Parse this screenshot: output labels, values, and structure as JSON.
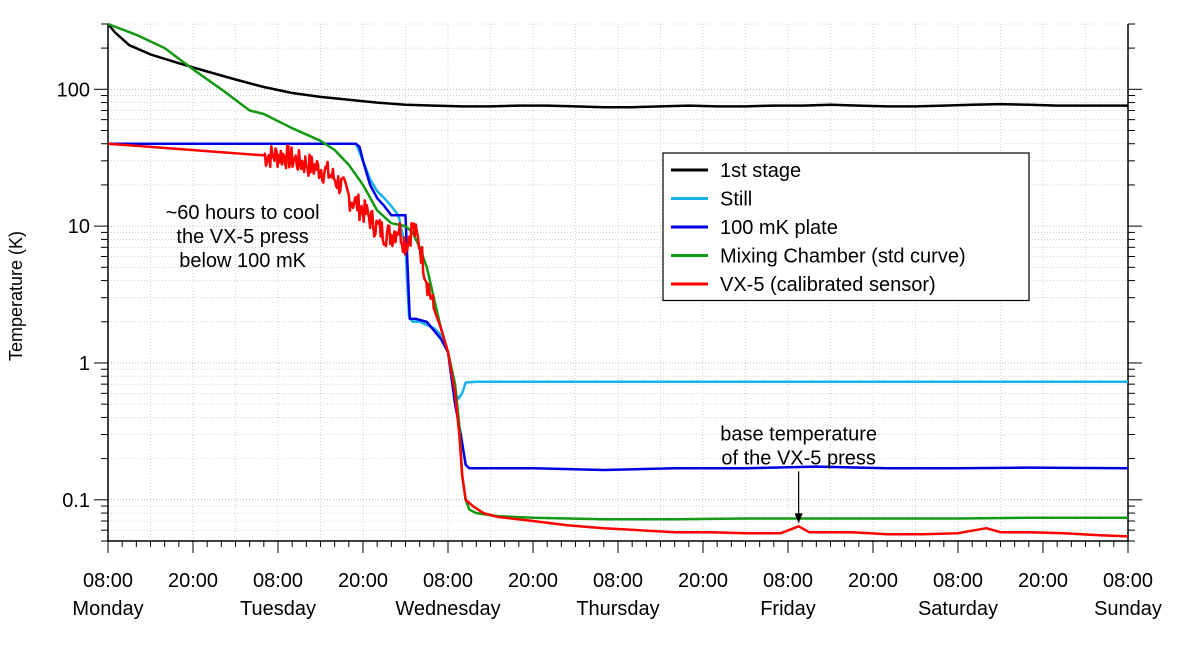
{
  "chart_data": {
    "type": "line",
    "title": "",
    "xlabel": "",
    "ylabel": "Temperature (K)",
    "yscale": "log",
    "ylim": [
      0.05,
      300
    ],
    "xlim_hours": [
      0,
      144
    ],
    "grid": true,
    "legend_position": "upper-right",
    "x_ticks": [
      {
        "hour": 0,
        "time": "08:00",
        "day": "Monday"
      },
      {
        "hour": 12,
        "time": "20:00",
        "day": ""
      },
      {
        "hour": 24,
        "time": "08:00",
        "day": "Tuesday"
      },
      {
        "hour": 36,
        "time": "20:00",
        "day": ""
      },
      {
        "hour": 48,
        "time": "08:00",
        "day": "Wednesday"
      },
      {
        "hour": 60,
        "time": "20:00",
        "day": ""
      },
      {
        "hour": 72,
        "time": "08:00",
        "day": "Thursday"
      },
      {
        "hour": 84,
        "time": "20:00",
        "day": ""
      },
      {
        "hour": 96,
        "time": "08:00",
        "day": "Friday"
      },
      {
        "hour": 108,
        "time": "20:00",
        "day": ""
      },
      {
        "hour": 120,
        "time": "08:00",
        "day": "Saturday"
      },
      {
        "hour": 132,
        "time": "20:00",
        "day": ""
      },
      {
        "hour": 144,
        "time": "08:00",
        "day": "Sunday"
      }
    ],
    "y_ticks": [
      {
        "value": 100,
        "label": "100"
      },
      {
        "value": 10,
        "label": "10"
      },
      {
        "value": 1,
        "label": "1"
      },
      {
        "value": 0.1,
        "label": "0.1"
      }
    ],
    "series": [
      {
        "name": "1st stage",
        "color": "#000000",
        "width": 2.5,
        "points": [
          [
            0,
            300
          ],
          [
            1,
            260
          ],
          [
            3,
            210
          ],
          [
            6,
            180
          ],
          [
            10,
            155
          ],
          [
            14,
            135
          ],
          [
            18,
            118
          ],
          [
            22,
            104
          ],
          [
            26,
            94
          ],
          [
            30,
            88
          ],
          [
            34,
            84
          ],
          [
            38,
            80
          ],
          [
            42,
            77
          ],
          [
            46,
            76
          ],
          [
            50,
            75
          ],
          [
            54,
            75
          ],
          [
            58,
            76
          ],
          [
            62,
            76
          ],
          [
            66,
            75
          ],
          [
            70,
            74
          ],
          [
            74,
            74
          ],
          [
            78,
            75
          ],
          [
            82,
            76
          ],
          [
            86,
            75
          ],
          [
            90,
            75
          ],
          [
            94,
            76
          ],
          [
            98,
            76
          ],
          [
            102,
            77
          ],
          [
            106,
            76
          ],
          [
            110,
            75
          ],
          [
            114,
            75
          ],
          [
            118,
            76
          ],
          [
            122,
            77
          ],
          [
            126,
            78
          ],
          [
            130,
            77
          ],
          [
            134,
            76
          ],
          [
            138,
            76
          ],
          [
            144,
            76
          ]
        ]
      },
      {
        "name": "Still",
        "color": "#1ab2ea",
        "width": 2.5,
        "points": [
          [
            0,
            40
          ],
          [
            30,
            40
          ],
          [
            35,
            40
          ],
          [
            36,
            30
          ],
          [
            37,
            22
          ],
          [
            38,
            18
          ],
          [
            39,
            16
          ],
          [
            40,
            14
          ],
          [
            41,
            12
          ],
          [
            42,
            7
          ],
          [
            42.5,
            2.2
          ],
          [
            43,
            2
          ],
          [
            44,
            2
          ],
          [
            46,
            1.8
          ],
          [
            47,
            1.6
          ],
          [
            48,
            1.2
          ],
          [
            49,
            0.6
          ],
          [
            49.5,
            0.55
          ],
          [
            50,
            0.6
          ],
          [
            50.5,
            0.72
          ],
          [
            52,
            0.73
          ],
          [
            60,
            0.73
          ],
          [
            80,
            0.73
          ],
          [
            100,
            0.73
          ],
          [
            120,
            0.73
          ],
          [
            144,
            0.73
          ]
        ]
      },
      {
        "name": "100 mK plate",
        "color": "#0000e6",
        "width": 2.5,
        "points": [
          [
            0,
            40
          ],
          [
            35,
            40
          ],
          [
            35.5,
            38
          ],
          [
            36,
            30
          ],
          [
            37,
            20
          ],
          [
            38,
            16
          ],
          [
            39,
            14
          ],
          [
            40,
            12
          ],
          [
            41,
            12
          ],
          [
            42,
            12
          ],
          [
            42.3,
            5
          ],
          [
            42.6,
            2.1
          ],
          [
            43.5,
            2.1
          ],
          [
            45,
            2
          ],
          [
            47,
            1.5
          ],
          [
            48,
            1.2
          ],
          [
            49,
            0.5
          ],
          [
            49.8,
            0.3
          ],
          [
            50.5,
            0.18
          ],
          [
            51,
            0.17
          ],
          [
            55,
            0.17
          ],
          [
            60,
            0.17
          ],
          [
            70,
            0.165
          ],
          [
            80,
            0.17
          ],
          [
            90,
            0.17
          ],
          [
            100,
            0.175
          ],
          [
            110,
            0.17
          ],
          [
            120,
            0.17
          ],
          [
            130,
            0.172
          ],
          [
            144,
            0.17
          ]
        ]
      },
      {
        "name": "Mixing Chamber (std curve)",
        "color": "#149914",
        "width": 2.5,
        "points": [
          [
            0,
            300
          ],
          [
            4,
            250
          ],
          [
            8,
            200
          ],
          [
            12,
            140
          ],
          [
            16,
            100
          ],
          [
            20,
            70
          ],
          [
            22,
            66
          ],
          [
            26,
            52
          ],
          [
            30,
            42
          ],
          [
            32,
            36
          ],
          [
            34,
            28
          ],
          [
            36,
            20
          ],
          [
            38,
            13
          ],
          [
            40,
            10.5
          ],
          [
            42,
            10
          ],
          [
            43,
            9
          ],
          [
            44,
            7
          ],
          [
            45,
            5
          ],
          [
            46,
            3
          ],
          [
            47,
            1.8
          ],
          [
            48,
            1.2
          ],
          [
            49,
            0.7
          ],
          [
            49.6,
            0.35
          ],
          [
            50,
            0.15
          ],
          [
            50.5,
            0.1
          ],
          [
            51,
            0.085
          ],
          [
            52,
            0.08
          ],
          [
            55,
            0.076
          ],
          [
            60,
            0.074
          ],
          [
            70,
            0.072
          ],
          [
            80,
            0.072
          ],
          [
            90,
            0.073
          ],
          [
            100,
            0.073
          ],
          [
            110,
            0.073
          ],
          [
            120,
            0.073
          ],
          [
            130,
            0.074
          ],
          [
            144,
            0.074
          ]
        ]
      },
      {
        "name": "VX-5 (calibrated sensor)",
        "color": "#ff0000",
        "width": 2.5,
        "points": [
          [
            0,
            40
          ],
          [
            25,
            40
          ],
          [
            26,
            38
          ],
          [
            27,
            36
          ],
          [
            28,
            35
          ],
          [
            29,
            33
          ],
          [
            30,
            32
          ],
          [
            31,
            30
          ],
          [
            32,
            27
          ],
          [
            33,
            24
          ],
          [
            34,
            20
          ],
          [
            35,
            18
          ],
          [
            36,
            16
          ],
          [
            37,
            14
          ],
          [
            38,
            12
          ],
          [
            39,
            11
          ],
          [
            40,
            10.5
          ],
          [
            41,
            12
          ],
          [
            42,
            9
          ],
          [
            43,
            12
          ],
          [
            44,
            9
          ],
          [
            45,
            5
          ],
          [
            46,
            3
          ],
          [
            47,
            1.8
          ],
          [
            48,
            1.2
          ],
          [
            49,
            0.6
          ],
          [
            49.6,
            0.3
          ],
          [
            50,
            0.15
          ],
          [
            50.5,
            0.1
          ],
          [
            51.5,
            0.09
          ],
          [
            53,
            0.08
          ],
          [
            55,
            0.075
          ],
          [
            60,
            0.07
          ],
          [
            65,
            0.065
          ],
          [
            70,
            0.062
          ],
          [
            75,
            0.06
          ],
          [
            80,
            0.058
          ],
          [
            85,
            0.058
          ],
          [
            90,
            0.057
          ],
          [
            95,
            0.057
          ],
          [
            97.5,
            0.064
          ],
          [
            99,
            0.058
          ],
          [
            105,
            0.058
          ],
          [
            110,
            0.056
          ],
          [
            115,
            0.056
          ],
          [
            120,
            0.057
          ],
          [
            124,
            0.062
          ],
          [
            126,
            0.058
          ],
          [
            130,
            0.058
          ],
          [
            135,
            0.057
          ],
          [
            140,
            0.055
          ],
          [
            144,
            0.054
          ]
        ]
      }
    ],
    "noise_segments": [
      {
        "series": "VX-5 (calibrated sensor)",
        "hour_start": 22,
        "hour_end": 46,
        "low_factor": 0.65,
        "high_factor": 1.0
      }
    ],
    "annotations": [
      {
        "name": "cooldown-note",
        "lines": [
          "~60 hours to cool",
          "the VX-5 press",
          "below 100 mK"
        ],
        "hour": 19,
        "value": 8.5
      },
      {
        "name": "base-temp-note",
        "lines": [
          "base temperature",
          "of the VX-5 press"
        ],
        "hour": 97.5,
        "value": 0.25,
        "arrow_to": [
          97.5,
          0.065
        ]
      }
    ]
  }
}
